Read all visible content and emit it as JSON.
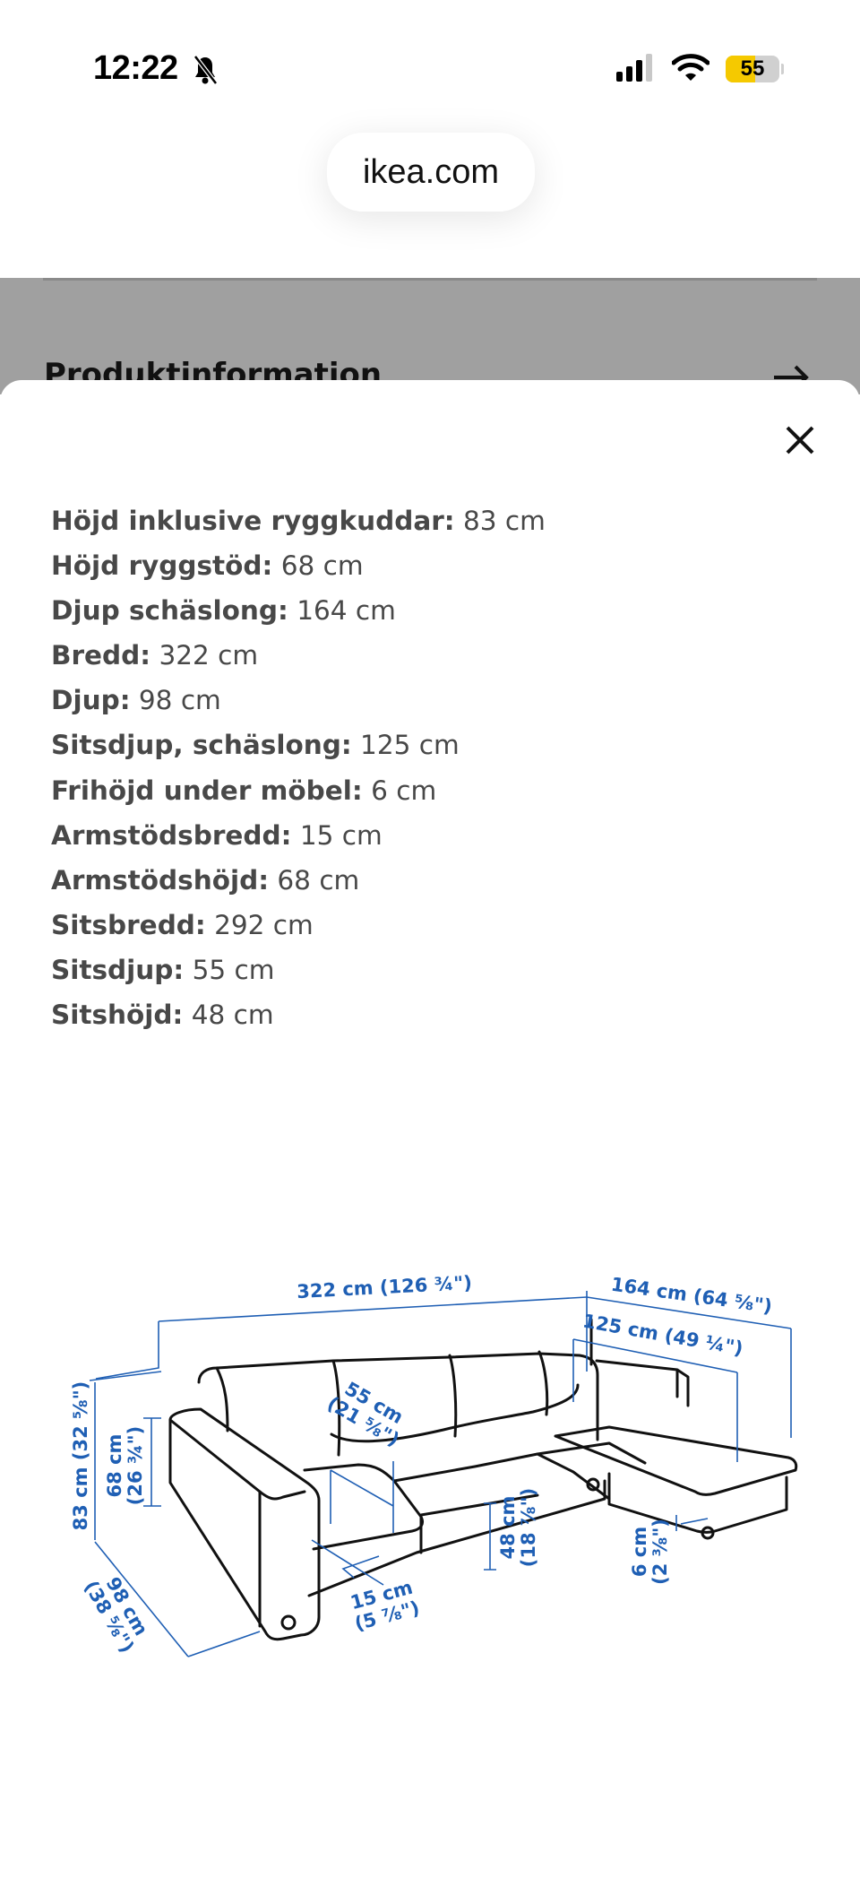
{
  "status_bar": {
    "time": "12:22",
    "battery": "55",
    "silent_icon": "bell-slash-icon",
    "signal_icon": "cellular-signal-icon",
    "wifi_icon": "wifi-icon"
  },
  "browser": {
    "url": "ikea.com"
  },
  "background_page": {
    "section_title": "Produktinformation",
    "arrow_icon": "arrow-right-icon"
  },
  "sheet": {
    "close_icon": "close-icon",
    "specs": [
      {
        "label": "Höjd inklusive ryggkuddar:",
        "value": "83 cm"
      },
      {
        "label": "Höjd ryggstöd:",
        "value": "68 cm"
      },
      {
        "label": "Djup schäslong:",
        "value": "164 cm"
      },
      {
        "label": "Bredd:",
        "value": "322 cm"
      },
      {
        "label": "Djup:",
        "value": "98 cm"
      },
      {
        "label": "Sitsdjup, schäslong:",
        "value": "125 cm"
      },
      {
        "label": "Frihöjd under möbel:",
        "value": "6 cm"
      },
      {
        "label": "Armstödsbredd:",
        "value": "15 cm"
      },
      {
        "label": "Armstödshöjd:",
        "value": "68 cm"
      },
      {
        "label": "Sitsbredd:",
        "value": "292 cm"
      },
      {
        "label": "Sitsdjup:",
        "value": "55 cm"
      },
      {
        "label": "Sitshöjd:",
        "value": "48 cm"
      }
    ],
    "diagram": {
      "accent_color": "#1f5fb4",
      "width": "322 cm (126 ¾\")",
      "chaise_depth": "164 cm (64 ⅝\")",
      "chaise_seat_depth": "125 cm (49 ¼\")",
      "height_cm": "83 cm",
      "height_in": "(32 ⅝\")",
      "back_height_cm": "68 cm",
      "back_height_in": "(26 ¾\")",
      "depth_cm": "98 cm",
      "depth_in": "(38 ⅝\")",
      "seat_depth_cm": "55 cm",
      "seat_depth_in": "(21 ⅝\")",
      "arm_width_cm": "15 cm",
      "arm_width_in": "(5 ⅞\")",
      "seat_height_cm": "48 cm",
      "seat_height_in": "(18 ⅞\")",
      "clearance_cm": "6 cm",
      "clearance_in": "(2 ⅜\")"
    }
  }
}
